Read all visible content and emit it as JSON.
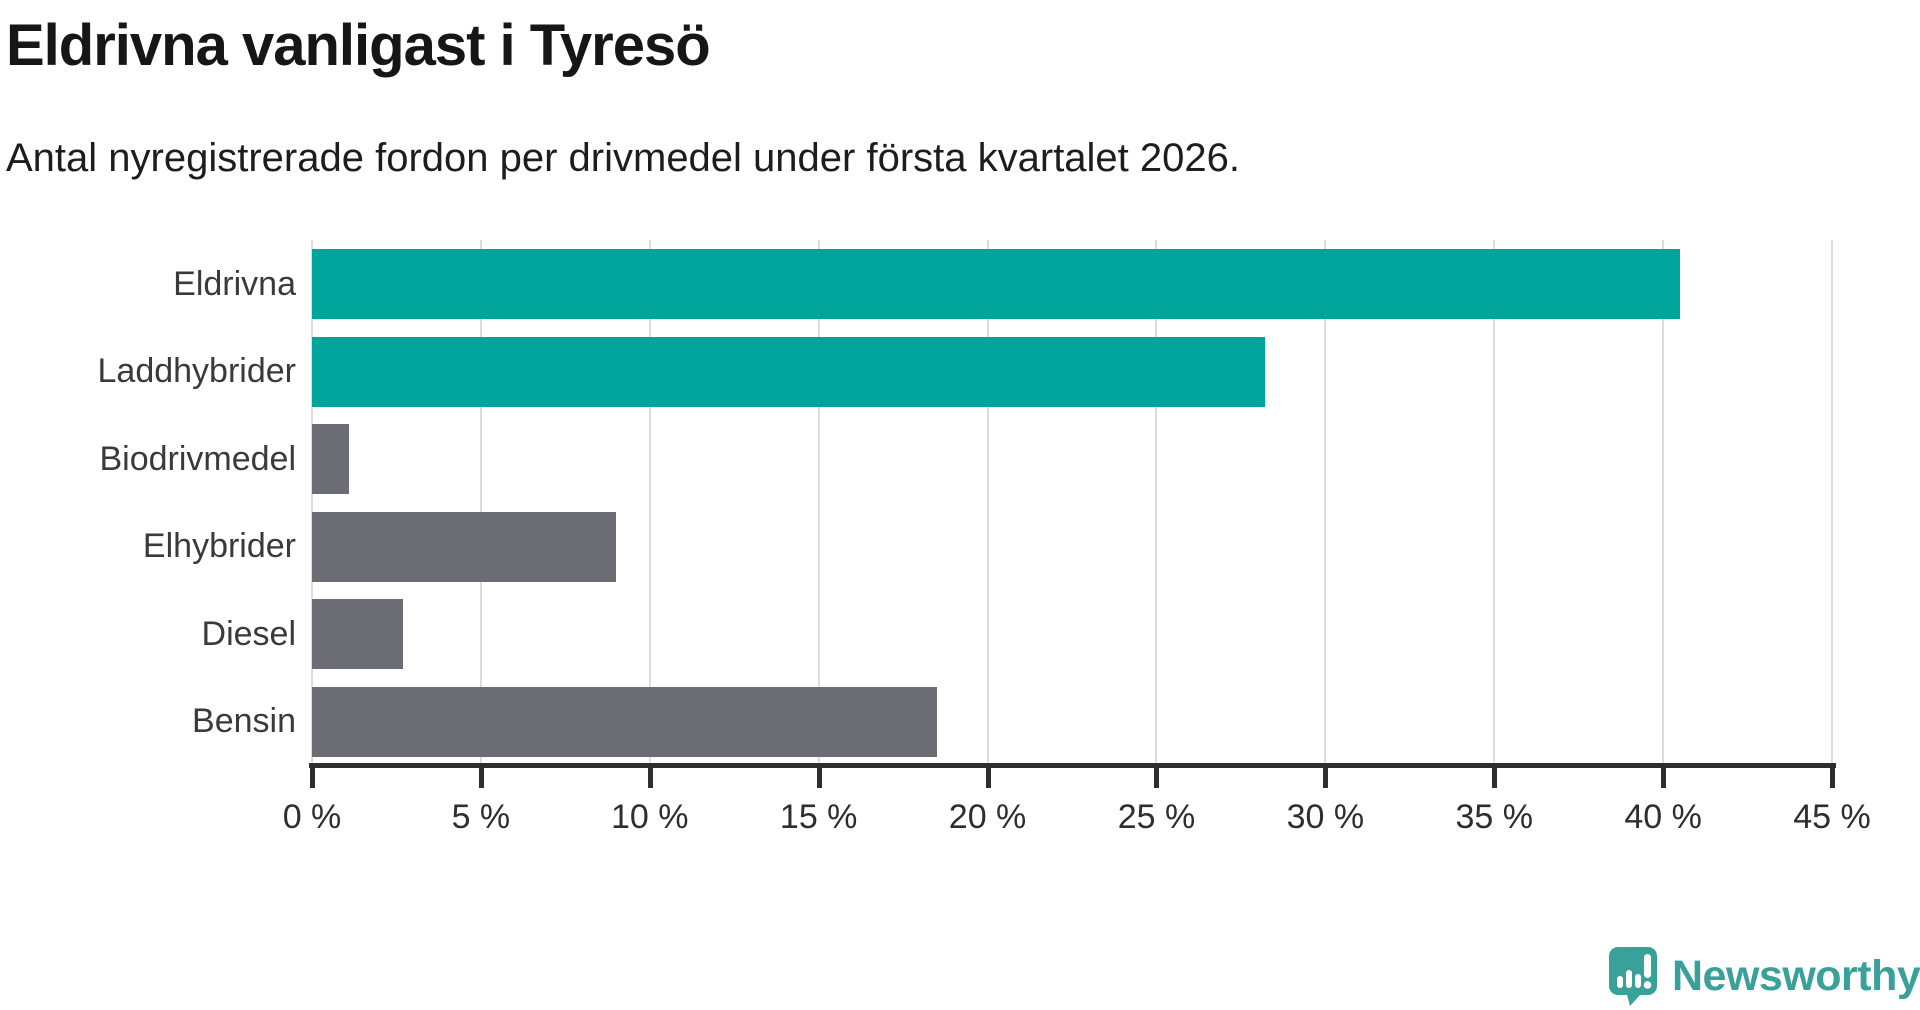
{
  "header": {
    "title": "Eldrivna vanligast i Tyresö",
    "subtitle": "Antal nyregistrerade fordon per drivmedel under första kvartalet 2026."
  },
  "chart_data": {
    "type": "bar",
    "orientation": "horizontal",
    "title": "Eldrivna vanligast i Tyresö",
    "subtitle": "Antal nyregistrerade fordon per drivmedel under första kvartalet 2026.",
    "categories": [
      "Eldrivna",
      "Laddhybrider",
      "Biodrivmedel",
      "Elhybrider",
      "Diesel",
      "Bensin"
    ],
    "values": [
      40.5,
      28.2,
      1.1,
      9.0,
      2.7,
      18.5
    ],
    "unit": "%",
    "xlim": [
      0,
      45
    ],
    "xticks": [
      0,
      5,
      10,
      15,
      20,
      25,
      30,
      35,
      40,
      45
    ],
    "xtick_labels": [
      "0 %",
      "5 %",
      "10 %",
      "15 %",
      "20 %",
      "25 %",
      "30 %",
      "35 %",
      "40 %",
      "45 %"
    ],
    "grid": true,
    "legend": "none",
    "bar_colors": [
      "#00a49a",
      "#00a49a",
      "#6c6c74",
      "#6c6c74",
      "#6c6c74",
      "#6c6c74"
    ]
  },
  "colors": {
    "highlight": "#00a49a",
    "default_bar": "#6c6c74",
    "gridline": "#dcdcdc",
    "axis": "#2e2e2e",
    "title_text": "#161616",
    "label_text": "#3a3a3a",
    "logo_teal": "#3aa09a"
  },
  "branding": {
    "logo_text": "Newsworthy",
    "logo_icon": "speech-bubble-bar-chart-exclamation"
  }
}
